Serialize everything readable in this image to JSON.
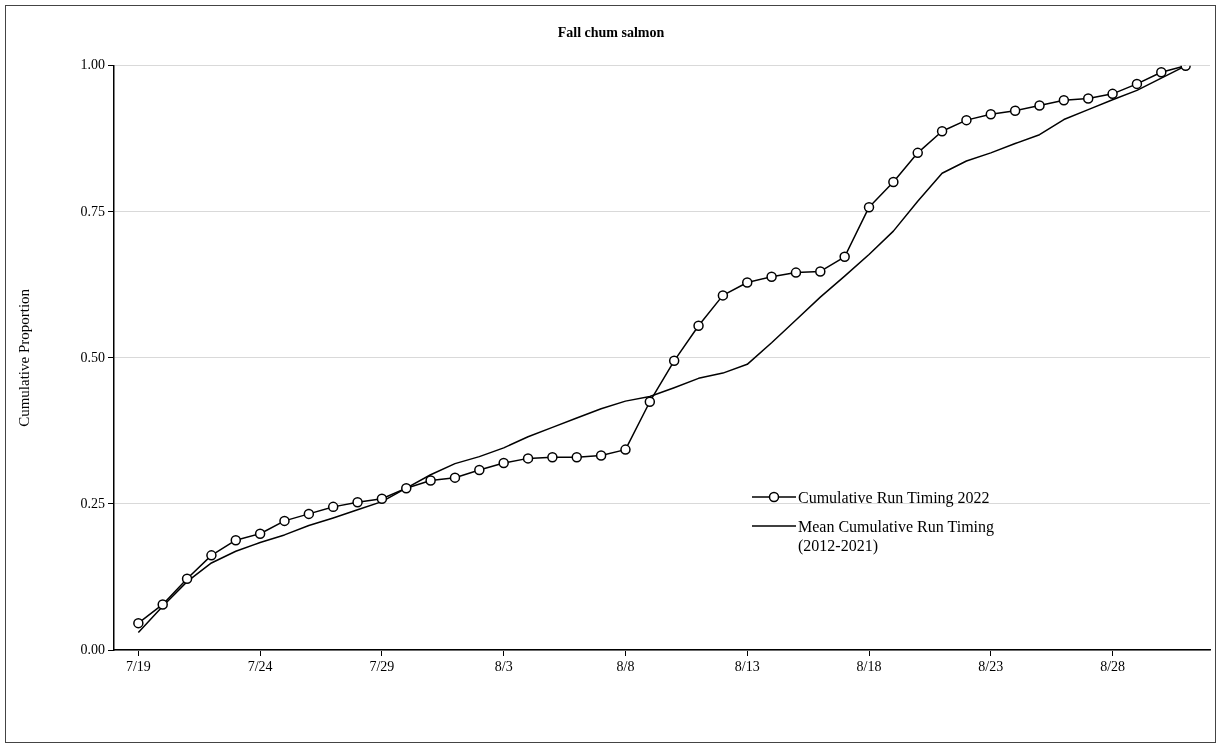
{
  "chart_data": {
    "type": "line",
    "title": "Fall chum salmon",
    "ylabel": "Cumulative Proportion",
    "x": [
      "--07-19",
      "--07-20",
      "--07-21",
      "--07-22",
      "--07-23",
      "--07-24",
      "--07-25",
      "--07-26",
      "--07-27",
      "--07-28",
      "--07-29",
      "--07-30",
      "--07-31",
      "--08-01",
      "--08-02",
      "--08-03",
      "--08-04",
      "--08-05",
      "--08-06",
      "--08-07",
      "--08-08",
      "--08-09",
      "--08-10",
      "--08-11",
      "--08-12",
      "--08-13",
      "--08-14",
      "--08-15",
      "--08-16",
      "--08-17",
      "--08-18",
      "--08-19",
      "--08-20",
      "--08-21",
      "--08-22",
      "--08-23",
      "--08-24",
      "--08-25",
      "--08-26",
      "--08-27",
      "--08-28",
      "--08-29",
      "--08-30",
      "--08-31"
    ],
    "series": [
      {
        "name": "Cumulative Run Timing 2022",
        "color": "#000000",
        "marker": "circle",
        "values": [
          0.046,
          0.078,
          0.122,
          0.162,
          0.188,
          0.199,
          0.221,
          0.233,
          0.245,
          0.253,
          0.259,
          0.277,
          0.29,
          0.295,
          0.308,
          0.32,
          0.328,
          0.33,
          0.33,
          0.333,
          0.343,
          0.425,
          0.495,
          0.555,
          0.607,
          0.629,
          0.639,
          0.646,
          0.648,
          0.673,
          0.758,
          0.801,
          0.851,
          0.888,
          0.907,
          0.917,
          0.923,
          0.932,
          0.941,
          0.944,
          0.952,
          0.969,
          0.989,
          1.0
        ]
      },
      {
        "name": "Mean Cumulative Run Timing (2012-2021)",
        "color": "#000000",
        "marker": "none",
        "values": [
          0.03,
          0.075,
          0.117,
          0.149,
          0.169,
          0.184,
          0.197,
          0.213,
          0.226,
          0.24,
          0.254,
          0.277,
          0.3,
          0.319,
          0.331,
          0.346,
          0.365,
          0.381,
          0.397,
          0.413,
          0.426,
          0.434,
          0.449,
          0.465,
          0.474,
          0.489,
          0.526,
          0.565,
          0.604,
          0.64,
          0.677,
          0.717,
          0.768,
          0.816,
          0.837,
          0.851,
          0.867,
          0.882,
          0.908,
          0.925,
          0.942,
          0.958,
          0.979,
          1.0
        ]
      }
    ],
    "xlim": [
      "--07-18",
      "--09-01"
    ],
    "xticks": [
      {
        "value": "--07-19",
        "label": "7/19"
      },
      {
        "value": "--07-24",
        "label": "7/24"
      },
      {
        "value": "--07-29",
        "label": "7/29"
      },
      {
        "value": "--08-03",
        "label": "8/3"
      },
      {
        "value": "--08-08",
        "label": "8/8"
      },
      {
        "value": "--08-13",
        "label": "8/13"
      },
      {
        "value": "--08-18",
        "label": "8/18"
      },
      {
        "value": "--08-23",
        "label": "8/23"
      },
      {
        "value": "--08-28",
        "label": "8/28"
      }
    ],
    "ylim": [
      0,
      1
    ],
    "yticks": [
      {
        "value": 0,
        "label": "0.00"
      },
      {
        "value": 0.25,
        "label": "0.25"
      },
      {
        "value": 0.5,
        "label": "0.50"
      },
      {
        "value": 0.75,
        "label": "0.75"
      },
      {
        "value": 1,
        "label": "1.00"
      }
    ],
    "grid": "y",
    "legend": "bottom right"
  }
}
